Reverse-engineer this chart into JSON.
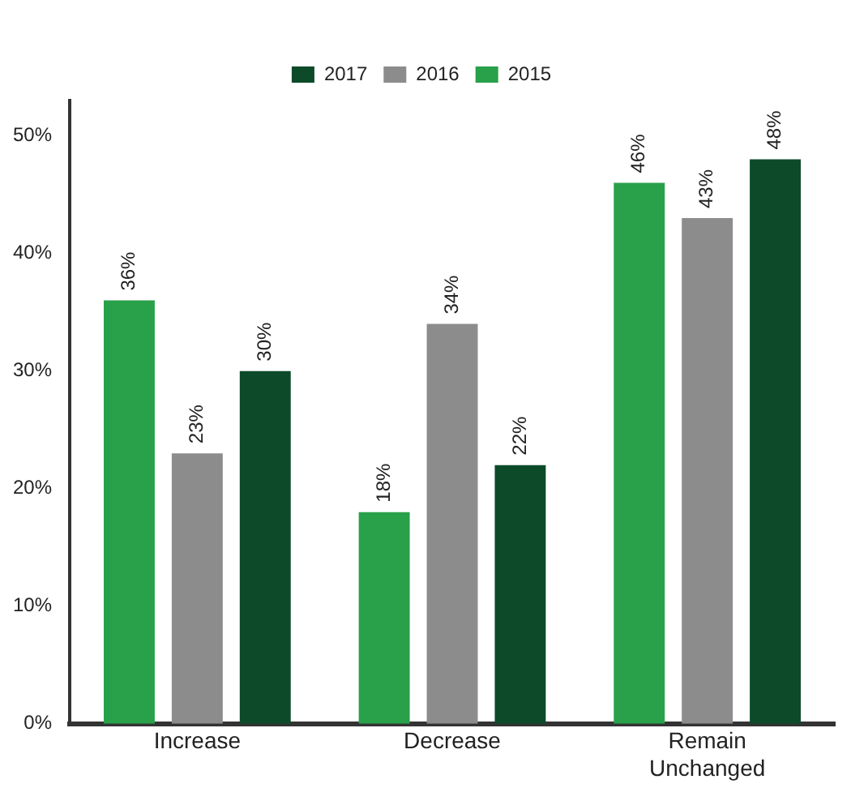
{
  "chart_data": {
    "type": "bar",
    "categories": [
      "Increase",
      "Decrease",
      "Remain\nUnchanged"
    ],
    "series": [
      {
        "name": "2015",
        "color": "#29a04a",
        "values": [
          36,
          18,
          46
        ],
        "value_labels": [
          "36%",
          "18%",
          "46%"
        ]
      },
      {
        "name": "2016",
        "color": "#8c8c8c",
        "values": [
          23,
          34,
          43
        ],
        "value_labels": [
          "23%",
          "34%",
          "43%"
        ]
      },
      {
        "name": "2017",
        "color": "#0c4a2a",
        "values": [
          30,
          22,
          48
        ],
        "value_labels": [
          "30%",
          "22%",
          "48%"
        ]
      }
    ],
    "ylim": [
      0,
      53
    ],
    "yticks": [
      {
        "value": 0,
        "label": "0%"
      },
      {
        "value": 10,
        "label": "10%"
      },
      {
        "value": 20,
        "label": "20%"
      },
      {
        "value": 30,
        "label": "30%"
      },
      {
        "value": 40,
        "label": "40%"
      },
      {
        "value": 50,
        "label": "50%"
      }
    ],
    "grid": false,
    "legend": "top"
  }
}
